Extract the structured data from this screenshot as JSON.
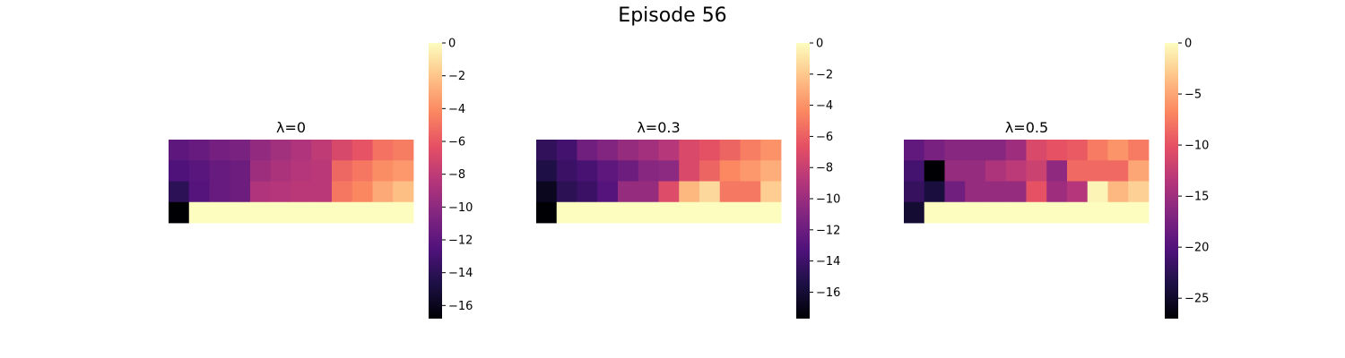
{
  "figure": {
    "title": "Episode 56"
  },
  "colormap": {
    "name": "magma",
    "stops": [
      "#000004",
      "#1c1044",
      "#4f127b",
      "#812581",
      "#b5367a",
      "#e55064",
      "#fb8761",
      "#fec287",
      "#fcfdbf"
    ]
  },
  "chart_data": [
    {
      "type": "heatmap",
      "title": "λ=0",
      "vmin": -16.8,
      "vmax": 0,
      "colorbar_ticks": [
        0,
        -2,
        -4,
        -6,
        -8,
        -10,
        -12,
        -14,
        -16
      ],
      "colorbar_tick_labels": [
        "0",
        "−2",
        "−4",
        "−6",
        "−8",
        "−10",
        "−12",
        "−14",
        "−16"
      ],
      "rows": [
        [
          -12.0,
          -11.6,
          -11.0,
          -10.8,
          -9.8,
          -9.2,
          -8.6,
          -8.0,
          -6.9,
          -6.2,
          -5.0,
          -4.6
        ],
        [
          -12.6,
          -12.2,
          -11.6,
          -11.4,
          -9.4,
          -8.8,
          -8.4,
          -8.2,
          -5.4,
          -4.8,
          -4.0,
          -3.6
        ],
        [
          -14.0,
          -12.4,
          -11.6,
          -11.4,
          -8.6,
          -8.4,
          -8.2,
          -8.2,
          -4.8,
          -4.2,
          -3.0,
          -2.2
        ],
        [
          -16.8,
          0,
          0,
          0,
          0,
          0,
          0,
          0,
          0,
          0,
          0,
          0
        ]
      ]
    },
    {
      "type": "heatmap",
      "title": "λ=0.3",
      "vmin": -17.7,
      "vmax": 0,
      "colorbar_ticks": [
        0,
        -2,
        -4,
        -6,
        -8,
        -10,
        -12,
        -14,
        -16
      ],
      "colorbar_tick_labels": [
        "0",
        "−2",
        "−4",
        "−6",
        "−8",
        "−10",
        "−12",
        "−14",
        "−16"
      ],
      "rows": [
        [
          -14.6,
          -13.8,
          -11.8,
          -11.0,
          -10.2,
          -9.6,
          -8.8,
          -7.2,
          -6.6,
          -5.8,
          -4.8,
          -4.0
        ],
        [
          -15.4,
          -14.2,
          -13.6,
          -12.6,
          -12.0,
          -10.8,
          -10.6,
          -7.2,
          -5.8,
          -4.4,
          -3.8,
          -3.0
        ],
        [
          -16.8,
          -14.8,
          -14.2,
          -13.0,
          -10.2,
          -10.2,
          -7.0,
          -2.6,
          -1.4,
          -5.0,
          -5.0,
          -1.8
        ],
        [
          -17.7,
          0,
          0,
          0,
          0,
          0,
          0,
          0,
          0,
          0,
          0,
          0
        ]
      ]
    },
    {
      "type": "heatmap",
      "title": "λ=0.5",
      "vmin": -27,
      "vmax": 0,
      "colorbar_ticks": [
        0,
        -5,
        -10,
        -15,
        -20,
        -25
      ],
      "colorbar_tick_labels": [
        "0",
        "−5",
        "−10",
        "−15",
        "−20",
        "−25"
      ],
      "rows": [
        [
          -19.0,
          -17.5,
          -16.5,
          -16.5,
          -16.5,
          -15.0,
          -11.0,
          -10.0,
          -9.5,
          -7.5,
          -6.0,
          -7.5
        ],
        [
          -21.0,
          -27.0,
          -15.5,
          -15.5,
          -14.0,
          -13.0,
          -12.0,
          -16.0,
          -8.5,
          -8.5,
          -8.5,
          -5.0
        ],
        [
          -22.0,
          -24.0,
          -18.0,
          -15.5,
          -15.5,
          -15.5,
          -10.0,
          -15.0,
          -13.5,
          -0.5,
          -4.0,
          -2.5
        ],
        [
          -24.5,
          0,
          0,
          0,
          0,
          0,
          0,
          0,
          0,
          0,
          0,
          0
        ]
      ]
    }
  ]
}
